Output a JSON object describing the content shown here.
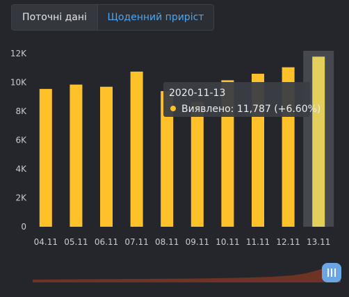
{
  "tabs": [
    {
      "label": "Поточні дані",
      "active": false
    },
    {
      "label": "Щоденний приріст",
      "active": true
    }
  ],
  "colors": {
    "bar": "#ffc12a",
    "bar_highlight": "#e3cf5c",
    "highlight_band": "#45484e",
    "tooltip_bg": "#3b3e44",
    "scroll_fill": "#6e3324",
    "scroll_handle": "#6aa6e6"
  },
  "tooltip": {
    "date": "2020-11-13",
    "text": "Виявлено: 11,787 (+6.60%)",
    "marker_icon": "dot-icon"
  },
  "chart_data": {
    "type": "bar",
    "categories": [
      "04.11",
      "05.11",
      "06.11",
      "07.11",
      "08.11",
      "09.11",
      "10.11",
      "11.11",
      "12.11",
      "13.11"
    ],
    "values": [
      9550,
      9850,
      9700,
      10750,
      9400,
      8650,
      10150,
      10600,
      11050,
      11787
    ],
    "ylim": [
      0,
      12000
    ],
    "yticks": [
      "0",
      "2K",
      "4K",
      "6K",
      "8K",
      "10K",
      "12K"
    ],
    "highlight_index": 9,
    "grid": false
  }
}
